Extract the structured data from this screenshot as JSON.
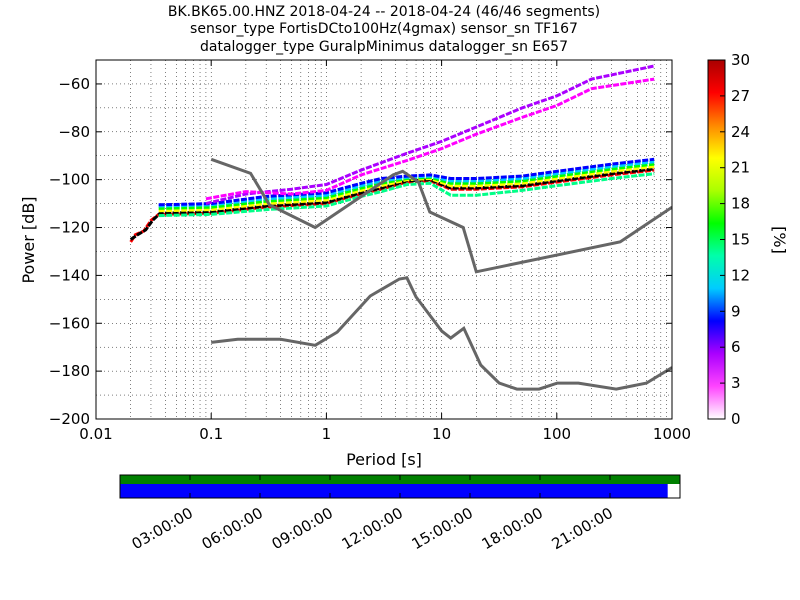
{
  "chart_data": [
    {
      "type": "heatmap",
      "title_lines": [
        "BK.BK65.00.HNZ   2018-04-24 -- 2018-04-24  (46/46 segments)",
        "sensor_type FortisDCto100Hz(4gmax) sensor_sn TF167",
        "datalogger_type GuralpMinimus datalogger_sn E657"
      ],
      "xlabel": "Period [s]",
      "ylabel": "Power [dB]",
      "x_scale": "log",
      "xlim": [
        0.01,
        1000
      ],
      "ylim": [
        -200,
        -50
      ],
      "xticks": [
        {
          "value": 0.01,
          "label": "0.01"
        },
        {
          "value": 0.1,
          "label": "0.1"
        },
        {
          "value": 1,
          "label": "1"
        },
        {
          "value": 10,
          "label": "10"
        },
        {
          "value": 100,
          "label": "100"
        },
        {
          "value": 1000,
          "label": "1000"
        }
      ],
      "yticks": [
        {
          "value": -200,
          "label": "−200"
        },
        {
          "value": -180,
          "label": "−180"
        },
        {
          "value": -160,
          "label": "−160"
        },
        {
          "value": -140,
          "label": "−140"
        },
        {
          "value": -120,
          "label": "−120"
        },
        {
          "value": -100,
          "label": "−100"
        },
        {
          "value": -80,
          "label": "−80"
        },
        {
          "value": -60,
          "label": "−60"
        }
      ],
      "grid": "dotted",
      "colorbar": {
        "label": "[%]",
        "range": [
          0,
          30
        ],
        "ticks": [
          {
            "value": 0,
            "label": "0"
          },
          {
            "value": 3,
            "label": "3"
          },
          {
            "value": 6,
            "label": "6"
          },
          {
            "value": 9,
            "label": "9"
          },
          {
            "value": 12,
            "label": "12"
          },
          {
            "value": 15,
            "label": "15"
          },
          {
            "value": 18,
            "label": "18"
          },
          {
            "value": 21,
            "label": "21"
          },
          {
            "value": 24,
            "label": "24"
          },
          {
            "value": 27,
            "label": "27"
          },
          {
            "value": 30,
            "label": "30"
          }
        ],
        "colors": [
          "#ffffff",
          "#ff44ff",
          "#aa00ff",
          "#0000ff",
          "#00ccff",
          "#00ffaa",
          "#00ff00",
          "#aaff00",
          "#ffff00",
          "#ff8800",
          "#ff0000",
          "#aa0000"
        ]
      },
      "noise_models": {
        "color": "#666666",
        "high": [
          [
            0.1,
            -91.5
          ],
          [
            0.22,
            -97.4
          ],
          [
            0.32,
            -110.5
          ],
          [
            0.8,
            -120
          ],
          [
            3.8,
            -98
          ],
          [
            4.6,
            -96.5
          ],
          [
            6.3,
            -101
          ],
          [
            7.9,
            -113.5
          ],
          [
            15.4,
            -120
          ],
          [
            20,
            -138.5
          ],
          [
            354.8,
            -126
          ],
          [
            1000,
            -111.5
          ]
        ],
        "low": [
          [
            0.1,
            -168
          ],
          [
            0.17,
            -166.7
          ],
          [
            0.4,
            -166.7
          ],
          [
            0.8,
            -169.2
          ],
          [
            1.24,
            -163.7
          ],
          [
            2.4,
            -148.6
          ],
          [
            4.3,
            -141.5
          ],
          [
            5,
            -141
          ],
          [
            6,
            -149
          ],
          [
            10,
            -163.2
          ],
          [
            12,
            -166.2
          ],
          [
            15.6,
            -162.1
          ],
          [
            21.9,
            -177.5
          ],
          [
            31.6,
            -185
          ],
          [
            45,
            -187.5
          ],
          [
            70,
            -187.5
          ],
          [
            101,
            -185
          ],
          [
            154,
            -185
          ],
          [
            328,
            -187.5
          ],
          [
            600,
            -185
          ],
          [
            1000,
            -178.5
          ]
        ]
      },
      "density_curves": [
        {
          "color": "#ff0000",
          "points": [
            [
              0.02,
              -126
            ],
            [
              0.022,
              -123
            ],
            [
              0.026,
              -121.5
            ],
            [
              0.03,
              -117
            ],
            [
              0.035,
              -114.5
            ],
            [
              0.1,
              -114
            ],
            [
              0.3,
              -111.5
            ],
            [
              1,
              -110
            ],
            [
              2,
              -106
            ],
            [
              3,
              -104
            ],
            [
              5,
              -101
            ],
            [
              8,
              -100.5
            ],
            [
              12,
              -104
            ],
            [
              20,
              -104
            ],
            [
              50,
              -103
            ],
            [
              100,
              -101
            ],
            [
              300,
              -98
            ],
            [
              700,
              -96
            ]
          ]
        },
        {
          "color": "#000000",
          "points": [
            [
              0.02,
              -125
            ],
            [
              0.023,
              -123
            ],
            [
              0.027,
              -121
            ],
            [
              0.031,
              -117
            ],
            [
              0.036,
              -114
            ],
            [
              0.1,
              -113.5
            ],
            [
              0.3,
              -111
            ],
            [
              1,
              -109.5
            ],
            [
              2,
              -105.5
            ],
            [
              3,
              -103.5
            ],
            [
              5,
              -100.5
            ],
            [
              8,
              -100
            ],
            [
              12,
              -103.5
            ],
            [
              20,
              -103.5
            ],
            [
              50,
              -102.5
            ],
            [
              100,
              -100.5
            ],
            [
              300,
              -97.5
            ],
            [
              700,
              -95.5
            ]
          ]
        },
        {
          "color": "#ffff00",
          "points": [
            [
              0.035,
              -113
            ],
            [
              0.1,
              -112.5
            ],
            [
              0.3,
              -110
            ],
            [
              1,
              -108.5
            ],
            [
              2,
              -104.5
            ],
            [
              3,
              -102.5
            ],
            [
              5,
              -100
            ],
            [
              8,
              -99.5
            ],
            [
              12,
              -102.5
            ],
            [
              20,
              -102.5
            ],
            [
              50,
              -101.5
            ],
            [
              100,
              -99.5
            ],
            [
              300,
              -96.5
            ],
            [
              700,
              -94.5
            ]
          ]
        },
        {
          "color": "#00ff00",
          "points": [
            [
              0.035,
              -112
            ],
            [
              0.1,
              -111.5
            ],
            [
              0.3,
              -109
            ],
            [
              1,
              -107.5
            ],
            [
              2,
              -103.5
            ],
            [
              3,
              -101.5
            ],
            [
              5,
              -99.5
            ],
            [
              8,
              -99
            ],
            [
              12,
              -101.5
            ],
            [
              20,
              -101.5
            ],
            [
              50,
              -100.5
            ],
            [
              100,
              -98.5
            ],
            [
              300,
              -95.5
            ],
            [
              700,
              -93.5
            ]
          ]
        },
        {
          "color": "#00ccff",
          "points": [
            [
              0.035,
              -111
            ],
            [
              0.1,
              -110.5
            ],
            [
              0.3,
              -108
            ],
            [
              1,
              -106.5
            ],
            [
              2,
              -102.5
            ],
            [
              3,
              -100.5
            ],
            [
              5,
              -99
            ],
            [
              8,
              -98.5
            ],
            [
              12,
              -100.5
            ],
            [
              20,
              -100.5
            ],
            [
              50,
              -99.5
            ],
            [
              100,
              -97.5
            ],
            [
              300,
              -94.5
            ],
            [
              700,
              -92.5
            ]
          ]
        },
        {
          "color": "#0000ff",
          "points": [
            [
              0.035,
              -110.5
            ],
            [
              0.1,
              -110
            ],
            [
              0.3,
              -107
            ],
            [
              1,
              -105.5
            ],
            [
              2,
              -101.5
            ],
            [
              3,
              -99.5
            ],
            [
              5,
              -98.5
            ],
            [
              8,
              -98
            ],
            [
              12,
              -99.5
            ],
            [
              20,
              -99.5
            ],
            [
              50,
              -98.5
            ],
            [
              100,
              -96.5
            ],
            [
              300,
              -93.5
            ],
            [
              700,
              -91.5
            ]
          ]
        },
        {
          "color": "#00ff88",
          "points": [
            [
              0.035,
              -115
            ],
            [
              0.1,
              -114.5
            ],
            [
              0.3,
              -112.5
            ],
            [
              1,
              -111
            ],
            [
              2,
              -107
            ],
            [
              3,
              -105
            ],
            [
              5,
              -102
            ],
            [
              8,
              -101.5
            ],
            [
              12,
              -106.5
            ],
            [
              20,
              -106.5
            ],
            [
              50,
              -104.5
            ],
            [
              100,
              -102.5
            ],
            [
              300,
              -99.5
            ],
            [
              700,
              -97.5
            ]
          ]
        },
        {
          "color": "#aa00ff",
          "points": [
            [
              0.09,
              -110
            ],
            [
              0.2,
              -106
            ],
            [
              0.5,
              -104
            ],
            [
              1,
              -102
            ],
            [
              2,
              -96
            ],
            [
              5,
              -89
            ],
            [
              10,
              -84
            ],
            [
              20,
              -78
            ],
            [
              50,
              -70
            ],
            [
              100,
              -65
            ],
            [
              200,
              -58
            ],
            [
              700,
              -52.5
            ]
          ]
        },
        {
          "color": "#ff00ff",
          "points": [
            [
              0.09,
              -108
            ],
            [
              0.2,
              -105
            ],
            [
              0.5,
              -106
            ],
            [
              1,
              -104.5
            ],
            [
              2,
              -98
            ],
            [
              5,
              -92
            ],
            [
              10,
              -87
            ],
            [
              20,
              -81
            ],
            [
              50,
              -74
            ],
            [
              100,
              -69
            ],
            [
              200,
              -62
            ],
            [
              700,
              -58
            ]
          ]
        }
      ]
    },
    {
      "type": "timeline",
      "xticks": [
        "03:00:00",
        "06:00:00",
        "09:00:00",
        "12:00:00",
        "15:00:00",
        "18:00:00",
        "21:00:00"
      ],
      "bars": [
        {
          "color": "#008000",
          "coverage": 1.0
        },
        {
          "color": "#0000ff",
          "coverage": 0.978
        }
      ]
    }
  ]
}
